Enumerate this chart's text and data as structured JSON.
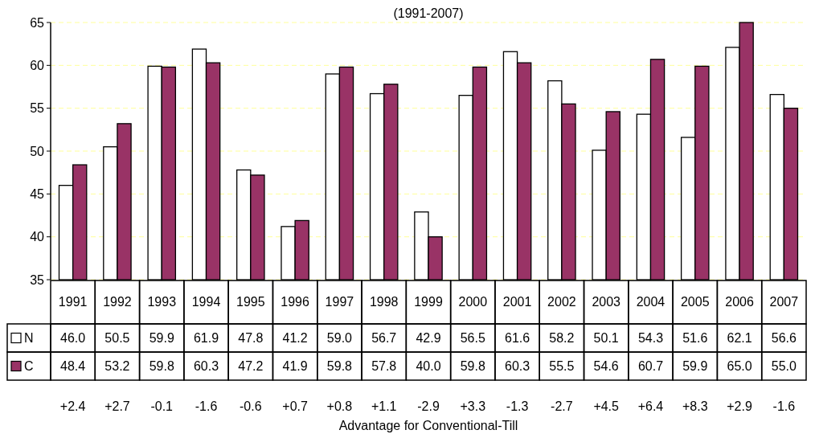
{
  "chart_data": {
    "type": "bar",
    "title": "(1991-2007)",
    "categories": [
      "1991",
      "1992",
      "1993",
      "1994",
      "1995",
      "1996",
      "1997",
      "1998",
      "1999",
      "2000",
      "2001",
      "2002",
      "2003",
      "2004",
      "2005",
      "2006",
      "2007"
    ],
    "series": [
      {
        "name": "N",
        "color": "#ffffff",
        "values": [
          46.0,
          50.5,
          59.9,
          61.9,
          47.8,
          41.2,
          59.0,
          56.7,
          42.9,
          56.5,
          61.6,
          58.2,
          50.1,
          54.3,
          51.6,
          62.1,
          56.6
        ],
        "value_labels": [
          "46.0",
          "50.5",
          "59.9",
          "61.9",
          "47.8",
          "41.2",
          "59.0",
          "56.7",
          "42.9",
          "56.5",
          "61.6",
          "58.2",
          "50.1",
          "54.3",
          "51.6",
          "62.1",
          "56.6"
        ]
      },
      {
        "name": "C",
        "color": "#993366",
        "values": [
          48.4,
          53.2,
          59.8,
          60.3,
          47.2,
          41.9,
          59.8,
          57.8,
          40.0,
          59.8,
          60.3,
          55.5,
          54.6,
          60.7,
          59.9,
          65.0,
          55.0
        ],
        "value_labels": [
          "48.4",
          "53.2",
          "59.8",
          "60.3",
          "47.2",
          "41.9",
          "59.8",
          "57.8",
          "40.0",
          "59.8",
          "60.3",
          "55.5",
          "54.6",
          "60.7",
          "59.9",
          "65.0",
          "55.0"
        ]
      }
    ],
    "ylim": [
      35,
      65
    ],
    "yticks": [
      35,
      40,
      45,
      50,
      55,
      60,
      65
    ],
    "grid": "y",
    "legend": "bottom",
    "annotations": [
      "+2.4",
      "+2.7",
      "-0.1",
      "-1.6",
      "-0.6",
      "+0.7",
      "+0.8",
      "+1.1",
      "-2.9",
      "+3.3",
      "-1.3",
      "-2.7",
      "+4.5",
      "+6.4",
      "+8.3",
      "+2.9",
      "-1.6",
      "Advantage for Conventional-Till"
    ]
  }
}
